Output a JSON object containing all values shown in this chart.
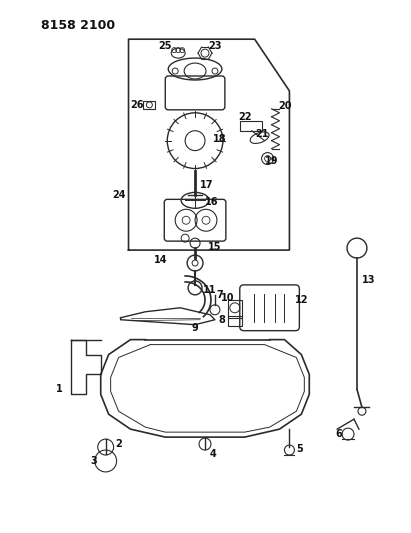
{
  "title": "8158 2100",
  "bg_color": "#ffffff",
  "line_color": "#2a2a2a",
  "text_color": "#111111",
  "figsize": [
    4.11,
    5.33
  ],
  "dpi": 100
}
